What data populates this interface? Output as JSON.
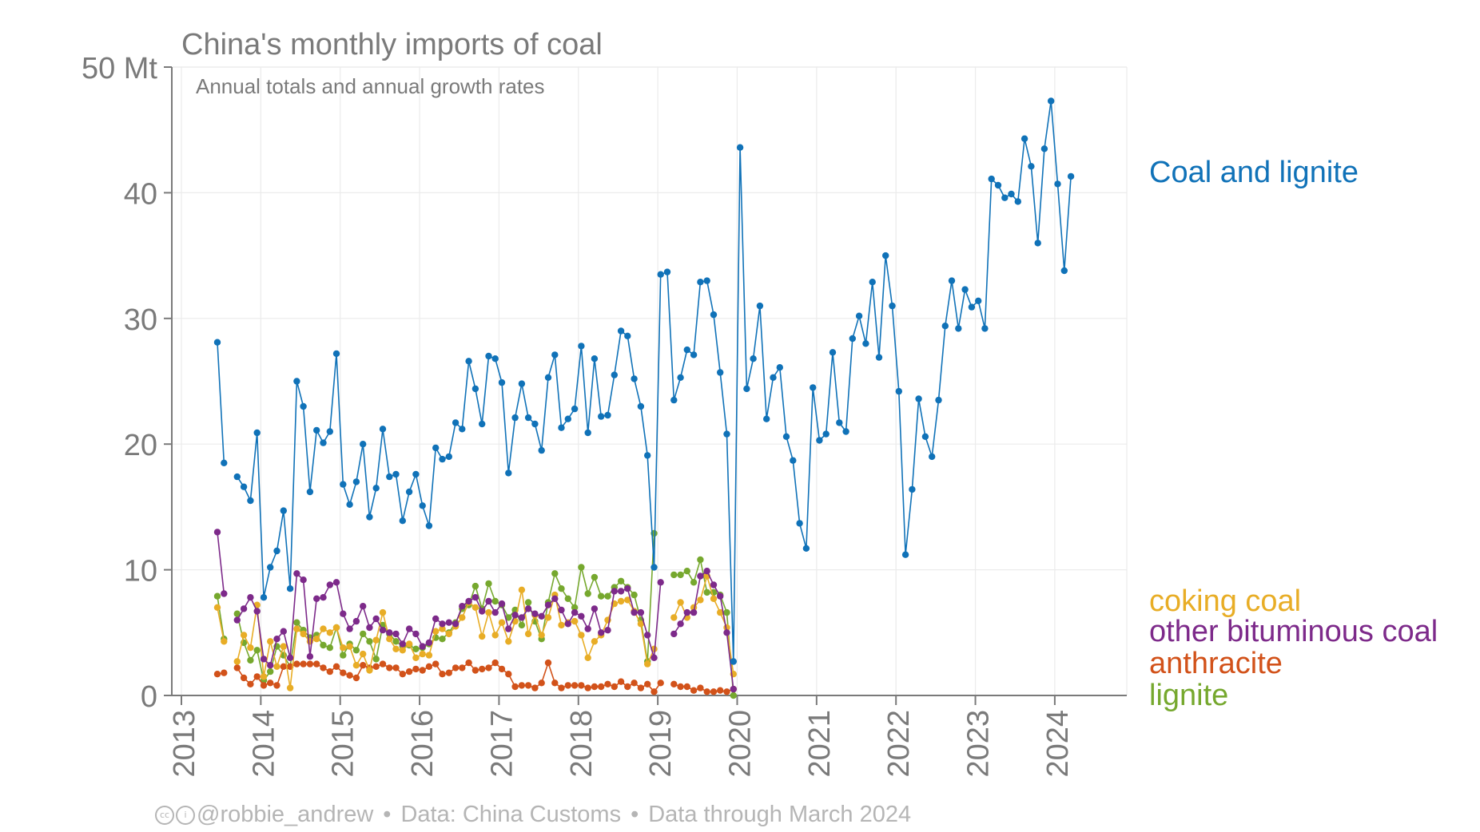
{
  "chart_data": {
    "type": "line",
    "title": "China's monthly imports of coal",
    "subtitle": "Annual totals and annual growth rates",
    "ylabel": "",
    "y_unit_label": "50 Mt",
    "ylim": [
      0,
      50
    ],
    "yticks": [
      "0",
      "10",
      "20",
      "30",
      "40",
      "50 Mt"
    ],
    "xlim": [
      2013.0,
      2025.0
    ],
    "xticks": [
      "2013",
      "2014",
      "2015",
      "2016",
      "2017",
      "2018",
      "2019",
      "2020",
      "2021",
      "2022",
      "2023",
      "2024"
    ],
    "grid": true,
    "legend_position": "right, labels at series ends",
    "start": "2013-01",
    "series": [
      {
        "name": "Coal and lignite",
        "color": "#1072b8",
        "values": [
          28.1,
          18.5,
          null,
          17.4,
          16.6,
          15.5,
          20.9,
          7.8,
          10.2,
          11.5,
          14.7,
          8.5,
          25.0,
          23.0,
          16.2,
          21.1,
          20.1,
          21.0,
          27.2,
          16.8,
          15.2,
          17.0,
          20.0,
          14.2,
          16.5,
          21.2,
          17.4,
          17.6,
          13.9,
          16.2,
          17.6,
          15.1,
          13.5,
          19.7,
          18.8,
          19.0,
          21.7,
          21.2,
          26.6,
          24.4,
          21.6,
          27.0,
          26.8,
          24.9,
          17.7,
          22.1,
          24.8,
          22.1,
          21.6,
          19.5,
          25.3,
          27.1,
          21.3,
          22.0,
          22.8,
          27.8,
          20.9,
          26.8,
          22.2,
          22.3,
          25.5,
          29.0,
          28.6,
          25.2,
          23.0,
          19.1,
          10.2,
          33.5,
          33.7,
          23.5,
          25.3,
          27.5,
          27.1,
          32.9,
          33.0,
          30.3,
          25.7,
          20.8,
          2.7,
          43.6,
          24.4,
          26.8,
          31.0,
          22.0,
          25.3,
          26.1,
          20.6,
          18.7,
          13.7,
          11.7,
          24.5,
          20.3,
          20.8,
          27.3,
          21.7,
          21.0,
          28.4,
          30.2,
          28.0,
          32.9,
          26.9,
          35.0,
          31.0,
          24.2,
          11.2,
          16.4,
          23.6,
          20.6,
          19.0,
          23.5,
          29.4,
          33.0,
          29.2,
          32.3,
          30.9,
          31.4,
          29.2,
          41.1,
          40.6,
          39.6,
          39.9,
          39.3,
          44.3,
          42.1,
          36.0,
          43.5,
          47.3,
          40.7,
          33.8,
          41.3
        ]
      },
      {
        "name": "coking coal",
        "color": "#e8ad26",
        "values": [
          7.0,
          4.3,
          null,
          2.7,
          4.8,
          3.8,
          7.2,
          1.5,
          4.3,
          2.3,
          3.9,
          0.6,
          5.3,
          4.9,
          4.3,
          4.5,
          5.3,
          5.0,
          5.4,
          3.8,
          3.9,
          2.4,
          3.3,
          2.0,
          4.4,
          6.6,
          4.5,
          3.7,
          3.6,
          4.1,
          3.0,
          3.3,
          3.2,
          5.1,
          5.3,
          4.9,
          5.5,
          6.2,
          7.4,
          7.0,
          4.7,
          6.6,
          4.8,
          5.8,
          4.3,
          5.9,
          8.4,
          4.9,
          6.4,
          4.8,
          6.2,
          8.0,
          5.6,
          5.8,
          5.9,
          4.8,
          3.0,
          4.3,
          4.8,
          6.0,
          7.3,
          7.5,
          7.6,
          6.7,
          5.7,
          2.5,
          3.7,
          null,
          null,
          6.2,
          7.4,
          6.2,
          7.0,
          7.6,
          9.5,
          7.7,
          6.6,
          5.4,
          1.7
        ]
      },
      {
        "name": "other bituminous coal",
        "color": "#7d2a8a",
        "values": [
          13.0,
          8.1,
          null,
          6.0,
          6.9,
          7.8,
          6.7,
          2.9,
          2.4,
          4.5,
          5.1,
          3.0,
          9.7,
          9.2,
          3.1,
          7.7,
          7.8,
          8.8,
          9.0,
          6.5,
          5.3,
          5.9,
          7.1,
          5.4,
          6.1,
          5.2,
          5.0,
          4.9,
          4.1,
          5.3,
          4.9,
          3.9,
          4.2,
          6.1,
          5.7,
          5.8,
          5.7,
          7.1,
          7.5,
          7.8,
          6.7,
          7.5,
          6.6,
          7.3,
          5.3,
          6.4,
          6.2,
          6.9,
          6.5,
          6.3,
          7.2,
          7.7,
          6.8,
          5.7,
          6.6,
          6.3,
          5.3,
          6.9,
          5.0,
          5.2,
          8.3,
          8.3,
          8.5,
          6.6,
          6.6,
          4.8,
          3.0,
          9.0,
          null,
          4.9,
          5.7,
          6.6,
          6.6,
          9.5,
          9.9,
          8.8,
          7.9,
          5.0,
          0.5
        ]
      },
      {
        "name": "anthracite",
        "color": "#d2521a",
        "values": [
          1.7,
          1.8,
          null,
          2.2,
          1.4,
          0.9,
          1.5,
          0.8,
          1.0,
          0.8,
          2.3,
          2.3,
          2.5,
          2.5,
          2.5,
          2.5,
          2.2,
          1.9,
          2.3,
          1.8,
          1.6,
          1.4,
          2.4,
          2.2,
          2.3,
          2.5,
          2.2,
          2.2,
          1.7,
          1.9,
          2.1,
          2.0,
          2.3,
          2.5,
          1.7,
          1.8,
          2.2,
          2.2,
          2.6,
          2.0,
          2.1,
          2.2,
          2.6,
          2.1,
          1.7,
          0.7,
          0.8,
          0.8,
          0.6,
          1.0,
          2.6,
          1.0,
          0.6,
          0.8,
          0.8,
          0.8,
          0.6,
          0.7,
          0.7,
          0.9,
          0.7,
          1.1,
          0.7,
          1.0,
          0.6,
          0.9,
          0.3,
          1.0,
          null,
          0.9,
          0.7,
          0.7,
          0.4,
          0.6,
          0.3,
          0.3,
          0.4,
          0.3,
          0.5
        ]
      },
      {
        "name": "lignite",
        "color": "#76a82e",
        "values": [
          7.9,
          4.5,
          null,
          6.5,
          4.2,
          2.8,
          3.6,
          1.2,
          1.9,
          3.9,
          3.2,
          2.3,
          5.8,
          5.2,
          4.6,
          4.8,
          4.0,
          3.8,
          5.4,
          3.2,
          4.1,
          3.6,
          4.9,
          4.3,
          2.9,
          5.6,
          4.9,
          4.3,
          3.9,
          4.0,
          3.7,
          3.8,
          4.1,
          4.6,
          4.5,
          5.0,
          5.8,
          6.9,
          7.2,
          8.7,
          6.9,
          8.9,
          7.5,
          7.2,
          6.2,
          6.8,
          5.6,
          7.4,
          5.9,
          4.5,
          7.4,
          9.7,
          8.5,
          7.7,
          7.0,
          10.2,
          8.1,
          9.4,
          7.9,
          7.9,
          8.6,
          9.1,
          8.6,
          8.0,
          6.0,
          2.7,
          12.9,
          null,
          null,
          9.6,
          9.6,
          9.9,
          9.0,
          10.8,
          8.2,
          8.2,
          8.0,
          6.6,
          0.0
        ]
      }
    ]
  },
  "footer": {
    "author": "@robbie_andrew",
    "source": "Data: China Customs",
    "through": "Data through March 2024"
  }
}
